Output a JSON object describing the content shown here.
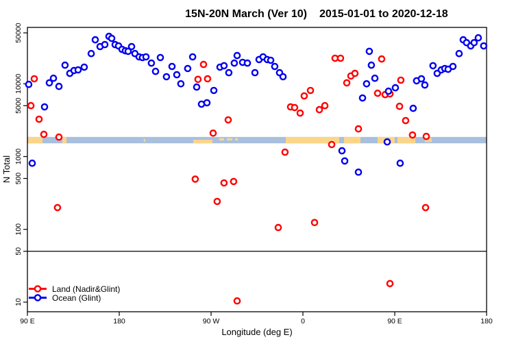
{
  "title": {
    "main": "15N-20N March (Ver 10)",
    "dates": "2015-01-01 to 2020-12-18"
  },
  "chart_data": {
    "type": "scatter",
    "title": "15N-20N March (Ver 10)   2015-01-01 to 2020-12-18",
    "xlabel": "Longitude (deg E)",
    "ylabel": "N Total",
    "x_axis": {
      "range": [
        90,
        540
      ],
      "ticks": [
        90,
        180,
        270,
        360,
        450,
        540
      ],
      "tick_labels": [
        "90 E",
        "180",
        "90 W",
        "0",
        "90 E",
        "180"
      ]
    },
    "y_axis": {
      "scale": "log",
      "range": [
        7,
        60000
      ],
      "ticks": [
        10,
        50,
        100,
        500,
        1000,
        5000,
        10000,
        50000
      ],
      "tick_labels": [
        "10",
        "50",
        "100",
        "500",
        "1000",
        "5000",
        "10000",
        "50000"
      ]
    },
    "grid": false,
    "reference_line_value": 50,
    "map_strip": {
      "description": "land-ocean strip for 15N-20N latitude band",
      "value_range": [
        1520,
        1860
      ],
      "ocean_color": "#a9bfde",
      "land_color": "#fbd68a",
      "land_segments": [
        {
          "lon": [
            90.7,
            104.8
          ],
          "yfrac": [
            0,
            1
          ]
        },
        {
          "lon": [
            124.3,
            128.3
          ],
          "yfrac": [
            0,
            1
          ]
        },
        {
          "lon": [
            204.0,
            205.5
          ],
          "yfrac": [
            0.3,
            0.75
          ]
        },
        {
          "lon": [
            252.5,
            271.3
          ],
          "yfrac": [
            0.45,
            1
          ]
        },
        {
          "lon": [
            278.0,
            282.7
          ],
          "yfrac": [
            0.2,
            0.55
          ]
        },
        {
          "lon": [
            285.4,
            290.8
          ],
          "yfrac": [
            0.2,
            0.55
          ]
        },
        {
          "lon": [
            293.5,
            296.2
          ],
          "yfrac": [
            0.2,
            0.55
          ]
        },
        {
          "lon": [
            343.2,
            395.6
          ],
          "yfrac": [
            0,
            1
          ]
        },
        {
          "lon": [
            400.3,
            416.4
          ],
          "yfrac": [
            0,
            1
          ]
        },
        {
          "lon": [
            433.2,
            450.0
          ],
          "yfrac": [
            0,
            1
          ]
        },
        {
          "lon": [
            452.7,
            470.2
          ],
          "yfrac": [
            0,
            1
          ]
        },
        {
          "lon": [
            479.5,
            486.2
          ],
          "yfrac": [
            0.2,
            0.8
          ]
        }
      ]
    },
    "legend": {
      "position": "bottom-left"
    },
    "series": [
      {
        "name": "Land (Nadir&Glint)",
        "color": "#ff0000",
        "points": [
          [
            93.4,
            5000
          ],
          [
            96.7,
            11700
          ],
          [
            101.4,
            3260
          ],
          [
            106.1,
            2020
          ],
          [
            119.5,
            199
          ],
          [
            120.9,
            1850
          ],
          [
            254.5,
            490
          ],
          [
            257.2,
            11500
          ],
          [
            262.6,
            18400
          ],
          [
            266.6,
            11700
          ],
          [
            272.0,
            2100
          ],
          [
            276.0,
            242
          ],
          [
            282.7,
            434
          ],
          [
            286.8,
            3190
          ],
          [
            292.1,
            454
          ],
          [
            295.5,
            10.4
          ],
          [
            335.8,
            106
          ],
          [
            342.5,
            1150
          ],
          [
            347.9,
            4810
          ],
          [
            351.9,
            4710
          ],
          [
            357.3,
            3960
          ],
          [
            361.3,
            6800
          ],
          [
            367.4,
            8100
          ],
          [
            371.4,
            124
          ],
          [
            376.1,
            4400
          ],
          [
            381.5,
            5000
          ],
          [
            388.2,
            1460
          ],
          [
            391.5,
            22400
          ],
          [
            396.9,
            22400
          ],
          [
            403.0,
            10300
          ],
          [
            407.0,
            12800
          ],
          [
            411.0,
            13900
          ],
          [
            414.4,
            2400
          ],
          [
            433.2,
            7400
          ],
          [
            437.2,
            21900
          ],
          [
            440.6,
            7100
          ],
          [
            445.3,
            7260
          ],
          [
            445.3,
            18
          ],
          [
            454.7,
            4900
          ],
          [
            456.0,
            11200
          ],
          [
            460.7,
            3120
          ],
          [
            467.4,
            1980
          ],
          [
            480.2,
            199
          ],
          [
            480.9,
            1890
          ]
        ]
      },
      {
        "name": "Ocean (Glint)",
        "color": "#0000ee",
        "points": [
          [
            91.3,
            9800
          ],
          [
            94.7,
            810
          ],
          [
            106.8,
            4810
          ],
          [
            111.5,
            10300
          ],
          [
            115.5,
            11900
          ],
          [
            120.9,
            9200
          ],
          [
            126.9,
            18000
          ],
          [
            131.6,
            13900
          ],
          [
            135.7,
            15200
          ],
          [
            139.7,
            15500
          ],
          [
            145.7,
            16900
          ],
          [
            152.5,
            26000
          ],
          [
            156.5,
            40200
          ],
          [
            161.2,
            32400
          ],
          [
            165.9,
            34500
          ],
          [
            169.9,
            44800
          ],
          [
            172.6,
            42000
          ],
          [
            176.0,
            34500
          ],
          [
            179.3,
            33100
          ],
          [
            182.7,
            29700
          ],
          [
            186.0,
            28400
          ],
          [
            188.7,
            27900
          ],
          [
            192.1,
            32400
          ],
          [
            195.4,
            26000
          ],
          [
            199.5,
            23400
          ],
          [
            202.8,
            22900
          ],
          [
            206.2,
            23400
          ],
          [
            211.5,
            19200
          ],
          [
            215.6,
            14800
          ],
          [
            220.3,
            22900
          ],
          [
            226.3,
            12500
          ],
          [
            231.7,
            17300
          ],
          [
            236.4,
            13300
          ],
          [
            240.4,
            10000
          ],
          [
            247.1,
            16200
          ],
          [
            251.9,
            23400
          ],
          [
            255.9,
            9000
          ],
          [
            260.6,
            5250
          ],
          [
            266.0,
            5480
          ],
          [
            272.7,
            8100
          ],
          [
            278.7,
            16900
          ],
          [
            282.7,
            17700
          ],
          [
            287.4,
            14200
          ],
          [
            292.8,
            19200
          ],
          [
            295.5,
            24400
          ],
          [
            300.9,
            19700
          ],
          [
            305.6,
            19200
          ],
          [
            313.0,
            14200
          ],
          [
            317.0,
            21500
          ],
          [
            321.0,
            23400
          ],
          [
            325.0,
            21500
          ],
          [
            328.4,
            21000
          ],
          [
            332.4,
            17300
          ],
          [
            337.1,
            14200
          ],
          [
            340.5,
            12500
          ],
          [
            398.3,
            1200
          ],
          [
            401.0,
            870
          ],
          [
            414.4,
            610
          ],
          [
            418.4,
            6380
          ],
          [
            422.4,
            10000
          ],
          [
            425.1,
            27900
          ],
          [
            427.1,
            18000
          ],
          [
            430.5,
            11900
          ],
          [
            442.6,
            1590
          ],
          [
            443.9,
            7900
          ],
          [
            450.6,
            8800
          ],
          [
            455.3,
            810
          ],
          [
            468.1,
            4600
          ],
          [
            471.4,
            11000
          ],
          [
            476.1,
            11700
          ],
          [
            479.5,
            9600
          ],
          [
            487.5,
            17700
          ],
          [
            491.6,
            13900
          ],
          [
            495.6,
            15500
          ],
          [
            499.0,
            16200
          ],
          [
            502.3,
            15800
          ],
          [
            507.0,
            17300
          ],
          [
            513.1,
            26000
          ],
          [
            517.1,
            40200
          ],
          [
            520.4,
            36700
          ],
          [
            524.5,
            33100
          ],
          [
            527.8,
            36700
          ],
          [
            531.9,
            42800
          ],
          [
            537.2,
            33100
          ]
        ]
      }
    ]
  }
}
